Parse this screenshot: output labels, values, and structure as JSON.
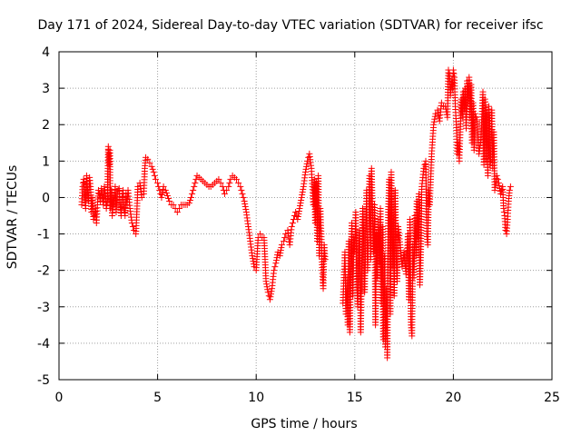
{
  "chart_data": {
    "type": "scatter",
    "title": "Day 171 of 2024, Sidereal Day-to-day VTEC variation (SDTVAR) for receiver ifsc",
    "xlabel": "GPS time / hours",
    "ylabel": "SDTVAR / TECUs",
    "xlim": [
      0,
      25
    ],
    "ylim": [
      -5,
      4
    ],
    "xticks": [
      "0",
      "5",
      "10",
      "15",
      "20",
      "25"
    ],
    "yticks": [
      "4",
      "3",
      "2",
      "1",
      "0",
      "-1",
      "-2",
      "-3",
      "-4",
      "-5"
    ],
    "grid": true,
    "marker": "+",
    "color": "#ff0000",
    "series": [
      {
        "name": "SDTVAR",
        "points": [
          [
            1.15,
            -0.2
          ],
          [
            1.2,
            0.3
          ],
          [
            1.25,
            0.5
          ],
          [
            1.3,
            0.1
          ],
          [
            1.35,
            -0.3
          ],
          [
            1.4,
            0.6
          ],
          [
            1.45,
            0.2
          ],
          [
            1.5,
            -0.1
          ],
          [
            1.55,
            0.55
          ],
          [
            1.6,
            0.3
          ],
          [
            1.65,
            -0.4
          ],
          [
            1.7,
            0.0
          ],
          [
            1.75,
            -0.6
          ],
          [
            1.8,
            -0.5
          ],
          [
            1.85,
            -0.3
          ],
          [
            1.9,
            -0.7
          ],
          [
            1.95,
            -0.2
          ],
          [
            2.0,
            0.2
          ],
          [
            2.05,
            0.1
          ],
          [
            2.1,
            -0.1
          ],
          [
            2.15,
            0.25
          ],
          [
            2.2,
            0.0
          ],
          [
            2.25,
            -0.2
          ],
          [
            2.3,
            0.3
          ],
          [
            2.35,
            0.1
          ],
          [
            2.4,
            -0.3
          ],
          [
            2.45,
            -0.1
          ],
          [
            2.5,
            1.4
          ],
          [
            2.52,
            1.2
          ],
          [
            2.55,
            0.9
          ],
          [
            2.58,
            1.3
          ],
          [
            2.6,
            -0.3
          ],
          [
            2.65,
            0.2
          ],
          [
            2.7,
            -0.5
          ],
          [
            2.75,
            0.0
          ],
          [
            2.8,
            -0.2
          ],
          [
            2.85,
            0.3
          ],
          [
            2.9,
            -0.4
          ],
          [
            2.95,
            0.1
          ],
          [
            3.0,
            0.2
          ],
          [
            3.05,
            0.25
          ],
          [
            3.1,
            -0.2
          ],
          [
            3.15,
            -0.5
          ],
          [
            3.2,
            0.0
          ],
          [
            3.25,
            0.2
          ],
          [
            3.3,
            -0.3
          ],
          [
            3.35,
            -0.5
          ],
          [
            3.4,
            0.1
          ],
          [
            3.45,
            -0.2
          ],
          [
            3.5,
            0.2
          ],
          [
            3.6,
            -0.3
          ],
          [
            3.7,
            -0.7
          ],
          [
            3.8,
            -0.9
          ],
          [
            3.9,
            -1.0
          ],
          [
            4.0,
            0.3
          ],
          [
            4.1,
            0.4
          ],
          [
            4.2,
            0.0
          ],
          [
            4.3,
            0.1
          ],
          [
            4.35,
            0.8
          ],
          [
            4.4,
            1.1
          ],
          [
            4.5,
            1.05
          ],
          [
            4.6,
            0.95
          ],
          [
            4.7,
            0.85
          ],
          [
            4.8,
            0.7
          ],
          [
            4.9,
            0.5
          ],
          [
            5.0,
            0.4
          ],
          [
            5.1,
            0.2
          ],
          [
            5.2,
            0.0
          ],
          [
            5.3,
            0.3
          ],
          [
            5.4,
            0.2
          ],
          [
            5.5,
            0.05
          ],
          [
            5.6,
            -0.1
          ],
          [
            5.7,
            -0.2
          ],
          [
            5.8,
            -0.2
          ],
          [
            5.9,
            -0.3
          ],
          [
            6.0,
            -0.4
          ],
          [
            6.1,
            -0.3
          ],
          [
            6.2,
            -0.2
          ],
          [
            6.3,
            -0.2
          ],
          [
            6.4,
            -0.2
          ],
          [
            6.5,
            -0.2
          ],
          [
            6.6,
            -0.15
          ],
          [
            6.7,
            0.0
          ],
          [
            6.8,
            0.2
          ],
          [
            6.9,
            0.4
          ],
          [
            7.0,
            0.6
          ],
          [
            7.1,
            0.55
          ],
          [
            7.2,
            0.5
          ],
          [
            7.3,
            0.45
          ],
          [
            7.4,
            0.4
          ],
          [
            7.5,
            0.35
          ],
          [
            7.6,
            0.3
          ],
          [
            7.7,
            0.3
          ],
          [
            7.8,
            0.35
          ],
          [
            7.9,
            0.4
          ],
          [
            8.0,
            0.45
          ],
          [
            8.1,
            0.5
          ],
          [
            8.2,
            0.4
          ],
          [
            8.3,
            0.3
          ],
          [
            8.4,
            0.1
          ],
          [
            8.5,
            0.2
          ],
          [
            8.6,
            0.3
          ],
          [
            8.7,
            0.5
          ],
          [
            8.8,
            0.6
          ],
          [
            8.9,
            0.55
          ],
          [
            9.0,
            0.5
          ],
          [
            9.1,
            0.4
          ],
          [
            9.2,
            0.3
          ],
          [
            9.3,
            0.1
          ],
          [
            9.4,
            -0.1
          ],
          [
            9.5,
            -0.4
          ],
          [
            9.6,
            -0.8
          ],
          [
            9.7,
            -1.2
          ],
          [
            9.8,
            -1.6
          ],
          [
            9.9,
            -1.9
          ],
          [
            10.0,
            -2.0
          ],
          [
            10.1,
            -1.1
          ],
          [
            10.2,
            -1.0
          ],
          [
            10.3,
            -1.1
          ],
          [
            10.4,
            -1.1
          ],
          [
            10.5,
            -2.3
          ],
          [
            10.6,
            -2.6
          ],
          [
            10.7,
            -2.8
          ],
          [
            10.8,
            -2.5
          ],
          [
            10.9,
            -2.0
          ],
          [
            11.0,
            -1.8
          ],
          [
            11.1,
            -1.5
          ],
          [
            11.2,
            -1.6
          ],
          [
            11.3,
            -1.3
          ],
          [
            11.4,
            -1.2
          ],
          [
            11.5,
            -1.0
          ],
          [
            11.6,
            -0.9
          ],
          [
            11.7,
            -1.3
          ],
          [
            11.8,
            -0.8
          ],
          [
            11.9,
            -0.6
          ],
          [
            12.0,
            -0.4
          ],
          [
            12.1,
            -0.6
          ],
          [
            12.2,
            -0.3
          ],
          [
            12.3,
            0.0
          ],
          [
            12.4,
            0.3
          ],
          [
            12.5,
            0.7
          ],
          [
            12.6,
            1.0
          ],
          [
            12.7,
            1.2
          ],
          [
            12.8,
            0.8
          ],
          [
            12.85,
            0.3
          ],
          [
            12.9,
            -0.2
          ],
          [
            12.95,
            0.5
          ],
          [
            13.0,
            -0.7
          ],
          [
            13.05,
            0.4
          ],
          [
            13.1,
            -1.2
          ],
          [
            13.15,
            0.6
          ],
          [
            13.2,
            -1.6
          ],
          [
            13.25,
            -0.3
          ],
          [
            13.3,
            -1.0
          ],
          [
            13.35,
            -2.0
          ],
          [
            13.4,
            -2.5
          ],
          [
            13.45,
            -1.3
          ],
          [
            13.5,
            -1.7
          ],
          [
            14.4,
            -2.9
          ],
          [
            14.5,
            -1.5
          ],
          [
            14.55,
            -3.2
          ],
          [
            14.6,
            -2.2
          ],
          [
            14.65,
            -3.5
          ],
          [
            14.7,
            -1.2
          ],
          [
            14.75,
            -3.7
          ],
          [
            14.8,
            -1.9
          ],
          [
            14.85,
            -0.7
          ],
          [
            14.9,
            -2.7
          ],
          [
            14.95,
            -1.1
          ],
          [
            15.0,
            -1.5
          ],
          [
            15.05,
            -0.4
          ],
          [
            15.1,
            -2.4
          ],
          [
            15.15,
            -3.0
          ],
          [
            15.2,
            -1.6
          ],
          [
            15.25,
            -0.9
          ],
          [
            15.3,
            -3.7
          ],
          [
            15.35,
            -2.1
          ],
          [
            15.4,
            -0.3
          ],
          [
            15.45,
            -1.0
          ],
          [
            15.5,
            -2.6
          ],
          [
            15.55,
            -1.4
          ],
          [
            15.6,
            0.2
          ],
          [
            15.65,
            -2.0
          ],
          [
            15.7,
            -1.1
          ],
          [
            15.75,
            0.6
          ],
          [
            15.8,
            -1.7
          ],
          [
            15.85,
            0.8
          ],
          [
            15.9,
            -0.4
          ],
          [
            15.95,
            -1.5
          ],
          [
            16.0,
            -0.2
          ],
          [
            16.05,
            -3.5
          ],
          [
            16.1,
            -1.0
          ],
          [
            16.15,
            -2.2
          ],
          [
            16.2,
            -0.6
          ],
          [
            16.25,
            -1.8
          ],
          [
            16.3,
            -0.3
          ],
          [
            16.35,
            -2.9
          ],
          [
            16.4,
            -0.8
          ],
          [
            16.45,
            -3.9
          ],
          [
            16.5,
            -1.6
          ],
          [
            16.55,
            -4.1
          ],
          [
            16.6,
            -2.5
          ],
          [
            16.65,
            -4.4
          ],
          [
            16.7,
            -0.4
          ],
          [
            16.75,
            0.5
          ],
          [
            16.8,
            -3.2
          ],
          [
            16.85,
            0.7
          ],
          [
            16.9,
            -1.9
          ],
          [
            16.95,
            -0.7
          ],
          [
            17.0,
            -2.7
          ],
          [
            17.05,
            0.2
          ],
          [
            17.1,
            -1.6
          ],
          [
            17.15,
            -2.3
          ],
          [
            17.2,
            -0.8
          ],
          [
            17.3,
            -1.3
          ],
          [
            17.4,
            -1.9
          ],
          [
            17.5,
            -1.5
          ],
          [
            17.6,
            -2.1
          ],
          [
            17.7,
            -1.0
          ],
          [
            17.75,
            -2.8
          ],
          [
            17.8,
            -0.6
          ],
          [
            17.85,
            -3.5
          ],
          [
            17.9,
            -3.8
          ],
          [
            17.95,
            -1.3
          ],
          [
            18.0,
            -2.2
          ],
          [
            18.05,
            -0.5
          ],
          [
            18.1,
            -1.6
          ],
          [
            18.15,
            -0.1
          ],
          [
            18.2,
            -1.1
          ],
          [
            18.25,
            0.1
          ],
          [
            18.3,
            -2.4
          ],
          [
            18.35,
            -1.5
          ],
          [
            18.4,
            0.3
          ],
          [
            18.5,
            0.8
          ],
          [
            18.6,
            1.0
          ],
          [
            18.65,
            -1.0
          ],
          [
            18.7,
            -1.3
          ],
          [
            18.75,
            0.2
          ],
          [
            18.8,
            -0.2
          ],
          [
            18.9,
            1.2
          ],
          [
            19.0,
            2.0
          ],
          [
            19.1,
            2.3
          ],
          [
            19.2,
            2.4
          ],
          [
            19.3,
            2.1
          ],
          [
            19.4,
            2.6
          ],
          [
            19.5,
            2.5
          ],
          [
            19.6,
            2.5
          ],
          [
            19.7,
            2.2
          ],
          [
            19.75,
            3.5
          ],
          [
            19.8,
            3.4
          ],
          [
            19.85,
            2.8
          ],
          [
            19.9,
            3.2
          ],
          [
            19.95,
            3.0
          ],
          [
            20.0,
            3.5
          ],
          [
            20.05,
            3.3
          ],
          [
            20.1,
            2.5
          ],
          [
            20.15,
            2.0
          ],
          [
            20.2,
            1.2
          ],
          [
            20.25,
            1.5
          ],
          [
            20.3,
            1.0
          ],
          [
            20.35,
            1.8
          ],
          [
            20.4,
            2.7
          ],
          [
            20.45,
            2.2
          ],
          [
            20.5,
            2.9
          ],
          [
            20.55,
            2.4
          ],
          [
            20.6,
            3.0
          ],
          [
            20.65,
            1.9
          ],
          [
            20.7,
            3.2
          ],
          [
            20.75,
            2.6
          ],
          [
            20.8,
            3.3
          ],
          [
            20.85,
            2.2
          ],
          [
            20.9,
            3.1
          ],
          [
            20.95,
            1.5
          ],
          [
            21.0,
            2.6
          ],
          [
            21.05,
            1.3
          ],
          [
            21.1,
            2.3
          ],
          [
            21.2,
            2.1
          ],
          [
            21.3,
            1.2
          ],
          [
            21.4,
            1.6
          ],
          [
            21.5,
            2.9
          ],
          [
            21.55,
            0.9
          ],
          [
            21.6,
            2.7
          ],
          [
            21.65,
            1.0
          ],
          [
            21.7,
            2.3
          ],
          [
            21.75,
            0.6
          ],
          [
            21.8,
            2.5
          ],
          [
            21.85,
            0.9
          ],
          [
            21.9,
            1.1
          ],
          [
            21.95,
            2.4
          ],
          [
            22.0,
            0.8
          ],
          [
            22.05,
            1.8
          ],
          [
            22.1,
            0.2
          ],
          [
            22.2,
            0.6
          ],
          [
            22.3,
            0.4
          ],
          [
            22.4,
            0.1
          ],
          [
            22.5,
            0.3
          ],
          [
            22.55,
            -0.3
          ],
          [
            22.6,
            -0.5
          ],
          [
            22.65,
            -0.9
          ],
          [
            22.7,
            -1.0
          ],
          [
            22.75,
            -0.6
          ],
          [
            22.8,
            -0.1
          ],
          [
            22.85,
            0.2
          ],
          [
            22.9,
            0.3
          ]
        ]
      }
    ]
  }
}
